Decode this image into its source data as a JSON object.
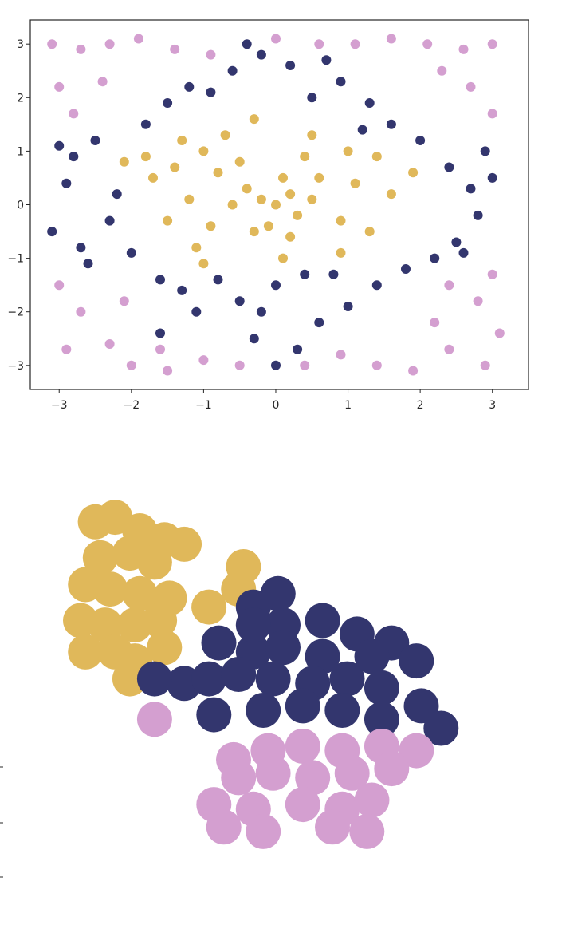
{
  "colors": {
    "navy": "#33366e",
    "gold": "#e0b85a",
    "lilac": "#d49fd0"
  },
  "chart_data": [
    {
      "type": "scatter",
      "title": "",
      "xlabel": "",
      "ylabel": "",
      "xlim": [
        -3.4,
        3.5
      ],
      "ylim": [
        -3.45,
        3.45
      ],
      "x_ticks": [
        -3,
        -2,
        -1,
        0,
        1,
        2,
        3
      ],
      "y_ticks": [
        -3,
        -2,
        -1,
        0,
        1,
        2,
        3
      ],
      "x_tick_labels": [
        "−3",
        "−2",
        "−1",
        "0",
        "1",
        "2",
        "3"
      ],
      "y_tick_labels": [
        "−3",
        "−2",
        "−1",
        "0",
        "1",
        "2",
        "3"
      ],
      "grid": false,
      "legend": "none",
      "series": [
        {
          "color": "#e0b85a",
          "points": [
            [
              0,
              0
            ],
            [
              -0.2,
              0.1
            ],
            [
              0.2,
              0.2
            ],
            [
              -0.4,
              0.3
            ],
            [
              0.3,
              -0.2
            ],
            [
              0.1,
              0.5
            ],
            [
              -0.1,
              -0.4
            ],
            [
              0.5,
              0.1
            ],
            [
              -0.6,
              0
            ],
            [
              0.2,
              -0.6
            ],
            [
              -0.3,
              -0.5
            ],
            [
              0.6,
              0.5
            ],
            [
              -0.8,
              0.6
            ],
            [
              0.9,
              -0.3
            ],
            [
              -0.9,
              -0.4
            ],
            [
              -0.5,
              0.8
            ],
            [
              0.4,
              0.9
            ],
            [
              1.1,
              0.4
            ],
            [
              -1.2,
              0.1
            ],
            [
              -1.0,
              1.0
            ],
            [
              1.0,
              1.0
            ],
            [
              -1.4,
              0.7
            ],
            [
              1.3,
              -0.5
            ],
            [
              -1.5,
              -0.3
            ],
            [
              -0.7,
              1.3
            ],
            [
              0.5,
              1.3
            ],
            [
              1.4,
              0.9
            ],
            [
              -1.7,
              0.5
            ],
            [
              -1.1,
              -0.8
            ],
            [
              0.9,
              -0.9
            ],
            [
              -2.1,
              0.8
            ],
            [
              -1.8,
              0.9
            ],
            [
              1.6,
              0.2
            ],
            [
              -0.3,
              1.6
            ],
            [
              0.1,
              -1.0
            ],
            [
              -1.3,
              1.2
            ],
            [
              1.9,
              0.6
            ],
            [
              -1.0,
              -1.1
            ]
          ]
        },
        {
          "color": "#33366e",
          "points": [
            [
              -3.0,
              1.1
            ],
            [
              -2.9,
              0.4
            ],
            [
              -3.1,
              -0.5
            ],
            [
              -2.7,
              -0.8
            ],
            [
              -2.5,
              1.2
            ],
            [
              -2.2,
              0.2
            ],
            [
              -2.0,
              -0.9
            ],
            [
              -2.3,
              -0.3
            ],
            [
              -1.8,
              1.5
            ],
            [
              -1.6,
              -1.4
            ],
            [
              -1.3,
              -1.6
            ],
            [
              -1.5,
              1.9
            ],
            [
              -0.9,
              2.1
            ],
            [
              -0.6,
              2.5
            ],
            [
              -0.2,
              2.8
            ],
            [
              0.2,
              2.6
            ],
            [
              0.5,
              2.0
            ],
            [
              0.9,
              2.3
            ],
            [
              1.3,
              1.9
            ],
            [
              1.6,
              1.5
            ],
            [
              2.0,
              1.2
            ],
            [
              2.4,
              0.7
            ],
            [
              2.7,
              0.3
            ],
            [
              3.0,
              0.5
            ],
            [
              2.8,
              -0.2
            ],
            [
              2.5,
              -0.7
            ],
            [
              2.2,
              -1.0
            ],
            [
              1.8,
              -1.2
            ],
            [
              1.4,
              -1.5
            ],
            [
              1.0,
              -1.9
            ],
            [
              0.6,
              -2.2
            ],
            [
              0.3,
              -2.7
            ],
            [
              0.0,
              -3.0
            ],
            [
              -0.3,
              -2.5
            ],
            [
              -0.5,
              -1.8
            ],
            [
              -0.8,
              -1.4
            ],
            [
              -1.1,
              -2.0
            ],
            [
              -1.6,
              -2.4
            ],
            [
              0.0,
              -1.5
            ],
            [
              0.4,
              -1.3
            ],
            [
              -0.2,
              -2.0
            ],
            [
              0.8,
              -1.3
            ],
            [
              -2.6,
              -1.1
            ],
            [
              -2.8,
              0.9
            ],
            [
              2.9,
              1.0
            ],
            [
              2.6,
              -0.9
            ],
            [
              1.2,
              1.4
            ],
            [
              -1.2,
              2.2
            ],
            [
              0.7,
              2.7
            ],
            [
              -0.4,
              3.0
            ]
          ]
        },
        {
          "color": "#d49fd0",
          "points": [
            [
              -3.1,
              3.0
            ],
            [
              -2.7,
              2.9
            ],
            [
              -2.3,
              3.0
            ],
            [
              -1.9,
              3.1
            ],
            [
              -1.4,
              2.9
            ],
            [
              -0.9,
              2.8
            ],
            [
              0.0,
              3.1
            ],
            [
              0.6,
              3.0
            ],
            [
              1.1,
              3.0
            ],
            [
              1.6,
              3.1
            ],
            [
              2.1,
              3.0
            ],
            [
              2.6,
              2.9
            ],
            [
              3.0,
              3.0
            ],
            [
              -3.0,
              2.2
            ],
            [
              -2.8,
              1.7
            ],
            [
              -2.4,
              2.3
            ],
            [
              2.7,
              2.2
            ],
            [
              3.0,
              1.7
            ],
            [
              2.3,
              2.5
            ],
            [
              -3.0,
              -1.5
            ],
            [
              -2.7,
              -2.0
            ],
            [
              -2.3,
              -2.6
            ],
            [
              -2.9,
              -2.7
            ],
            [
              -2.0,
              -3.0
            ],
            [
              -1.5,
              -3.1
            ],
            [
              -1.0,
              -2.9
            ],
            [
              -0.5,
              -3.0
            ],
            [
              0.4,
              -3.0
            ],
            [
              0.9,
              -2.8
            ],
            [
              1.4,
              -3.0
            ],
            [
              1.9,
              -3.1
            ],
            [
              2.4,
              -2.7
            ],
            [
              2.9,
              -3.0
            ],
            [
              3.1,
              -2.4
            ],
            [
              2.8,
              -1.8
            ],
            [
              2.4,
              -1.5
            ],
            [
              3.0,
              -1.3
            ],
            [
              2.2,
              -2.2
            ],
            [
              -2.1,
              -1.8
            ],
            [
              -1.6,
              -2.7
            ]
          ]
        }
      ]
    },
    {
      "type": "scatter",
      "title": "",
      "xlabel": "",
      "ylabel": "",
      "axes": "off",
      "grid": false,
      "legend": "none",
      "series": [
        {
          "color": "#e0b85a",
          "points": [
            [
              -1.9,
              1.7
            ],
            [
              -1.7,
              1.75
            ],
            [
              -1.45,
              1.6
            ],
            [
              -1.2,
              1.5
            ],
            [
              -1.0,
              1.45
            ],
            [
              -1.85,
              1.3
            ],
            [
              -1.55,
              1.35
            ],
            [
              -1.3,
              1.25
            ],
            [
              -2.0,
              1.0
            ],
            [
              -1.75,
              0.95
            ],
            [
              -1.45,
              0.9
            ],
            [
              -1.15,
              0.85
            ],
            [
              -2.05,
              0.6
            ],
            [
              -1.8,
              0.55
            ],
            [
              -1.5,
              0.55
            ],
            [
              -1.25,
              0.6
            ],
            [
              -2.0,
              0.25
            ],
            [
              -1.7,
              0.25
            ],
            [
              -1.5,
              0.15
            ],
            [
              -1.2,
              0.3
            ],
            [
              -1.55,
              -0.05
            ],
            [
              -0.75,
              0.75
            ],
            [
              -0.45,
              0.95
            ],
            [
              -0.4,
              1.2
            ]
          ]
        },
        {
          "color": "#33366e",
          "points": [
            [
              -0.3,
              0.75
            ],
            [
              0.0,
              0.55
            ],
            [
              0.4,
              0.6
            ],
            [
              0.75,
              0.45
            ],
            [
              1.1,
              0.35
            ],
            [
              -0.65,
              0.35
            ],
            [
              -0.3,
              0.25
            ],
            [
              0.0,
              0.3
            ],
            [
              0.4,
              0.2
            ],
            [
              0.9,
              0.2
            ],
            [
              1.35,
              0.15
            ],
            [
              -1.0,
              -0.1
            ],
            [
              -0.75,
              -0.05
            ],
            [
              -0.45,
              0.0
            ],
            [
              -0.1,
              -0.05
            ],
            [
              0.3,
              -0.1
            ],
            [
              0.65,
              -0.05
            ],
            [
              1.0,
              -0.15
            ],
            [
              1.4,
              -0.35
            ],
            [
              -0.7,
              -0.45
            ],
            [
              -0.2,
              -0.4
            ],
            [
              0.2,
              -0.35
            ],
            [
              0.6,
              -0.4
            ],
            [
              1.0,
              -0.5
            ],
            [
              1.6,
              -0.6
            ],
            [
              -0.05,
              0.9
            ],
            [
              -0.3,
              0.55
            ],
            [
              -1.3,
              -0.05
            ]
          ]
        },
        {
          "color": "#d49fd0",
          "points": [
            [
              -1.3,
              -0.5
            ],
            [
              -0.5,
              -0.95
            ],
            [
              -0.15,
              -0.85
            ],
            [
              0.2,
              -0.8
            ],
            [
              0.6,
              -0.85
            ],
            [
              1.0,
              -0.8
            ],
            [
              1.35,
              -0.85
            ],
            [
              -0.45,
              -1.15
            ],
            [
              -0.1,
              -1.1
            ],
            [
              0.3,
              -1.15
            ],
            [
              0.7,
              -1.1
            ],
            [
              1.1,
              -1.05
            ],
            [
              -0.7,
              -1.45
            ],
            [
              -0.3,
              -1.5
            ],
            [
              0.2,
              -1.45
            ],
            [
              0.6,
              -1.5
            ],
            [
              0.9,
              -1.4
            ],
            [
              -0.6,
              -1.7
            ],
            [
              -0.2,
              -1.75
            ],
            [
              0.5,
              -1.7
            ],
            [
              0.85,
              -1.75
            ]
          ]
        }
      ]
    }
  ]
}
